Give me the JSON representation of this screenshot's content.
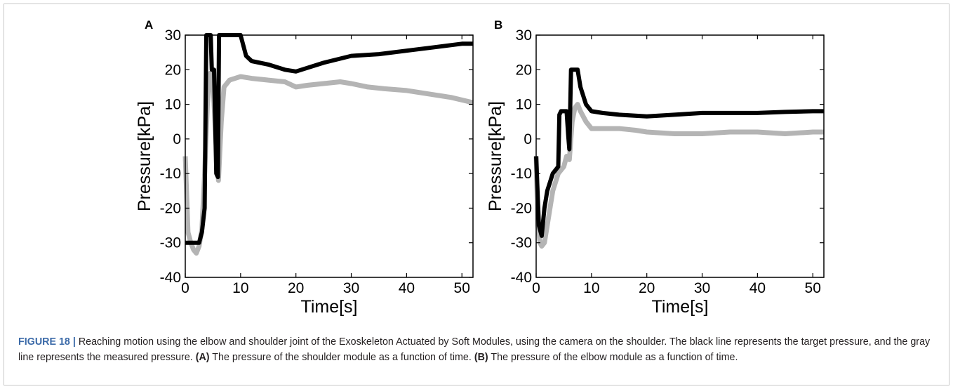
{
  "caption": {
    "label": "FIGURE 18 |",
    "part1": " Reaching motion using the elbow and shoulder joint of the Exoskeleton Actuated by Soft Modules, using the camera on the shoulder. The black line represents the target pressure, and the gray line represents the measured pressure. ",
    "ref_a": "(A)",
    "part2": " The pressure of the shoulder module as a function of time. ",
    "ref_b": "(B)",
    "part3": " The pressure of the elbow module as a function of time."
  },
  "chart_data": [
    {
      "panel_label": "A",
      "type": "line",
      "xlabel": "Time[s]",
      "ylabel": "Pressure[kPa]",
      "xlim": [
        0,
        52
      ],
      "ylim": [
        -40,
        30
      ],
      "xticks": [
        "0",
        "10",
        "20",
        "30",
        "40",
        "50"
      ],
      "yticks": [
        "-40",
        "-30",
        "-20",
        "-10",
        "0",
        "10",
        "20",
        "30"
      ],
      "grid": false,
      "legend": "none",
      "series": [
        {
          "color": "#b4b4b4",
          "x": [
            0,
            0.5,
            1,
            1.5,
            2,
            2.5,
            3,
            3.5,
            4,
            4.5,
            5,
            5.5,
            6,
            6.5,
            7,
            8,
            10,
            12,
            15,
            18,
            20,
            22,
            25,
            28,
            30,
            33,
            36,
            40,
            44,
            48,
            52
          ],
          "y": [
            -5,
            -27,
            -30,
            -32,
            -33,
            -31,
            -26,
            -10,
            10,
            19,
            17,
            0,
            -12,
            5,
            15,
            17,
            18,
            17.5,
            17,
            16.5,
            15,
            15.5,
            16,
            16.5,
            16,
            15,
            14.5,
            14,
            13,
            12,
            10.5
          ]
        },
        {
          "color": "#000000",
          "x": [
            0,
            1,
            2,
            2.5,
            3,
            3.5,
            3.8,
            4.2,
            4.6,
            4.8,
            5.2,
            5.6,
            5.9,
            6.1,
            6.5,
            7,
            8,
            9,
            10,
            11,
            12,
            15,
            18,
            20,
            22,
            25,
            30,
            35,
            40,
            45,
            50,
            52
          ],
          "y": [
            -30,
            -30,
            -30,
            -30,
            -27,
            -20,
            30,
            30,
            30,
            20,
            20,
            -10,
            -11,
            30,
            30,
            30,
            30,
            30,
            30,
            24,
            22.5,
            21.5,
            20,
            19.5,
            20.5,
            22,
            24,
            24.5,
            25.5,
            26.5,
            27.5,
            27.5
          ]
        }
      ]
    },
    {
      "panel_label": "B",
      "type": "line",
      "xlabel": "Time[s]",
      "ylabel": "Pressure[kPa]",
      "xlim": [
        0,
        52
      ],
      "ylim": [
        -40,
        30
      ],
      "xticks": [
        "0",
        "10",
        "20",
        "30",
        "40",
        "50"
      ],
      "yticks": [
        "-40",
        "-30",
        "-20",
        "-10",
        "0",
        "10",
        "20",
        "30"
      ],
      "grid": false,
      "legend": "none",
      "series": [
        {
          "color": "#b4b4b4",
          "x": [
            0,
            0.3,
            0.7,
            1,
            1.5,
            2,
            3,
            4,
            5,
            5.5,
            6,
            6.5,
            7,
            7.5,
            8,
            9,
            10,
            12,
            15,
            18,
            20,
            25,
            30,
            35,
            40,
            45,
            50,
            52
          ],
          "y": [
            -5,
            -25,
            -30,
            -31,
            -30,
            -25,
            -15,
            -10,
            -8,
            -5,
            -6,
            5,
            9,
            10,
            8,
            5,
            3,
            3,
            3,
            2.5,
            2,
            1.5,
            1.5,
            2,
            2,
            1.5,
            2,
            2
          ]
        },
        {
          "color": "#000000",
          "x": [
            0,
            0.5,
            1,
            1.5,
            2,
            3,
            4,
            4.2,
            4.5,
            5,
            5.5,
            5.8,
            6,
            6.3,
            7,
            7.5,
            8,
            9,
            10,
            12,
            15,
            20,
            25,
            30,
            35,
            40,
            45,
            50,
            52
          ],
          "y": [
            -5,
            -25,
            -28,
            -20,
            -15,
            -10,
            -8,
            7,
            8,
            8,
            8,
            1,
            -3,
            20,
            20,
            20,
            15,
            10,
            8,
            7.5,
            7,
            6.5,
            7,
            7.5,
            7.5,
            7.5,
            7.8,
            8,
            8
          ]
        }
      ]
    }
  ]
}
